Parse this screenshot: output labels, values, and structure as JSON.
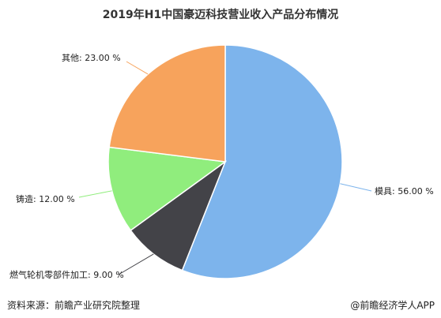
{
  "chart_data": {
    "type": "pie",
    "title": "2019年H1中国豪迈科技营业收入产品分布情况",
    "slices": [
      {
        "label": "模具",
        "value": 56.0,
        "display": "56.00 %",
        "color": "#7db4ec"
      },
      {
        "label": "燃气轮机零部件加工",
        "value": 9.0,
        "display": "9.00 %",
        "color": "#434348"
      },
      {
        "label": "铸造",
        "value": 12.0,
        "display": "12.00 %",
        "color": "#90ed7d"
      },
      {
        "label": "其他",
        "value": 23.0,
        "display": "23.00 %",
        "color": "#f7a35c"
      }
    ],
    "start_angle_deg": 0,
    "direction": "clockwise"
  },
  "footer": {
    "source": "资料来源：前瞻产业研究院整理",
    "credit": "@前瞻经济学人APP"
  }
}
